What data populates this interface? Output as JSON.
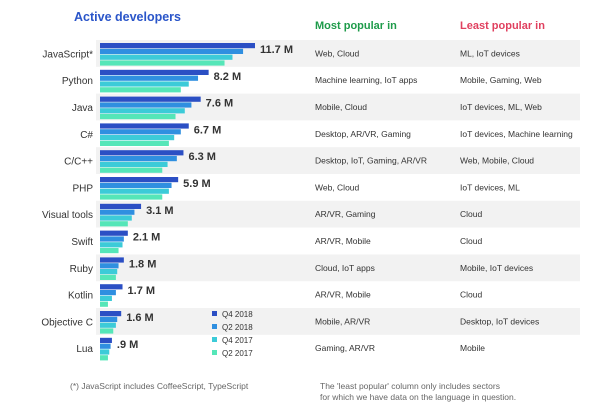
{
  "chart_data": {
    "type": "bar",
    "orientation": "horizontal",
    "title": "Active developers",
    "column_headers": {
      "most": "Most popular in",
      "least": "Least popular in"
    },
    "categories": [
      "JavaScript*",
      "Python",
      "Java",
      "C#",
      "C/C++",
      "PHP",
      "Visual tools",
      "Swift",
      "Ruby",
      "Kotlin",
      "Objective C",
      "Lua"
    ],
    "value_labels": [
      "11.7 M",
      "8.2 M",
      "7.6 M",
      "6.7 M",
      "6.3 M",
      "5.9 M",
      "3.1 M",
      "2.1 M",
      "1.8 M",
      "1.7 M",
      "1.6 M",
      ".9 M"
    ],
    "series": [
      {
        "name": "Q4 2018",
        "color": "#2b4fc4",
        "values": [
          11.7,
          8.2,
          7.6,
          6.7,
          6.3,
          5.9,
          3.1,
          2.1,
          1.8,
          1.7,
          1.6,
          0.9
        ]
      },
      {
        "name": "Q2 2018",
        "color": "#2f8fe0",
        "values": [
          10.8,
          7.4,
          6.9,
          6.1,
          5.8,
          5.4,
          2.6,
          1.8,
          1.4,
          1.2,
          1.3,
          0.8
        ]
      },
      {
        "name": "Q4 2017",
        "color": "#3ccbd8",
        "values": [
          10.0,
          6.7,
          6.4,
          5.6,
          5.1,
          5.2,
          2.4,
          1.7,
          1.3,
          0.9,
          1.2,
          0.7
        ]
      },
      {
        "name": "Q2 2017",
        "color": "#55e6b8",
        "values": [
          9.4,
          6.1,
          5.7,
          5.2,
          4.7,
          4.7,
          2.1,
          1.4,
          1.2,
          0.6,
          1.0,
          0.6
        ]
      }
    ],
    "most_popular": [
      "Web, Cloud",
      "Machine learning, IoT apps",
      "Mobile, Cloud",
      "Desktop, AR/VR, Gaming",
      "Desktop, IoT, Gaming, AR/VR",
      "Web, Cloud",
      "AR/VR, Gaming",
      "AR/VR, Mobile",
      "Cloud, IoT apps",
      "AR/VR, Mobile",
      "Mobile, AR/VR",
      "Gaming, AR/VR"
    ],
    "least_popular": [
      "ML, IoT devices",
      "Mobile, Gaming, Web",
      "IoT devices, ML, Web",
      "IoT devices, Machine learning",
      "Web, Mobile, Cloud",
      "IoT devices, ML",
      "Cloud",
      "Cloud",
      "Mobile, IoT devices",
      "Cloud",
      "Desktop, IoT devices",
      "Mobile"
    ],
    "legend_position": "bottom-right of bars",
    "grid": false
  },
  "footnote": "(*) JavaScript includes CoffeeScript, TypeScript",
  "note_line1": "The 'least popular' column only includes sectors",
  "note_line2": "for which we have data on the language in question."
}
